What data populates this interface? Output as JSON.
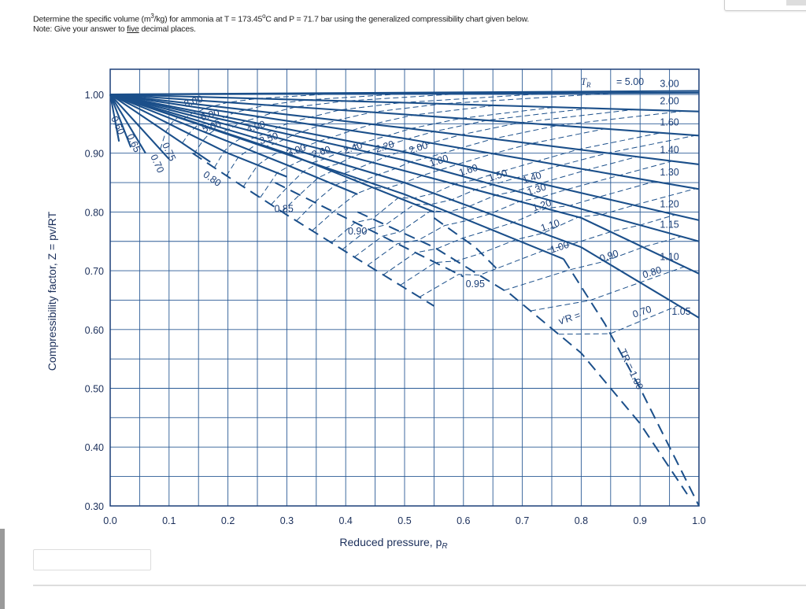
{
  "question": {
    "line1_a": "Determine the specific volume (m",
    "line1_sup": "3",
    "line1_b": "/kg) for ammonia at T = 173.45",
    "line1_deg": "o",
    "line1_c": "C and P = 71.7 bar using the generalized compressibility chart given below.",
    "line2_a": "Note: Give your answer to ",
    "line2_u": "five",
    "line2_b": " decimal places."
  },
  "answer_input": {
    "value": "",
    "placeholder": ""
  },
  "chart_data": {
    "type": "line",
    "title": "",
    "xlabel": "Reduced pressure, p",
    "xlabel_sub": "R",
    "ylabel": "Compressibility factor, Z = pv/RT",
    "xlim": [
      0.0,
      1.0
    ],
    "ylim": [
      0.3,
      1.04
    ],
    "grid": true,
    "grid_step": 0.05,
    "x_ticks": [
      "0.0",
      "0.1",
      "0.2",
      "0.3",
      "0.4",
      "0.5",
      "0.6",
      "0.7",
      "0.8",
      "0.9",
      "1.0"
    ],
    "y_ticks": [
      "0.30",
      "0.40",
      "0.50",
      "0.60",
      "0.70",
      "0.80",
      "0.90",
      "1.00"
    ],
    "line_color": "#1b4f8a",
    "tr_header": "T",
    "tr_header_sub": "R",
    "tr_header_value": "= 5.00",
    "isotherms": [
      {
        "label": "5.00",
        "points": [
          [
            0,
            1
          ],
          [
            1,
            1.006
          ]
        ],
        "label_at": null
      },
      {
        "label": "3.00",
        "points": [
          [
            0,
            1
          ],
          [
            1,
            1.003
          ]
        ],
        "label_at": [
          0.95,
          1.013
        ]
      },
      {
        "label": "2.00",
        "points": [
          [
            0,
            1
          ],
          [
            0.5,
            0.986
          ],
          [
            1,
            0.971
          ]
        ],
        "label_at": [
          0.95,
          0.983
        ]
      },
      {
        "label": "1.60",
        "points": [
          [
            0,
            1
          ],
          [
            0.5,
            0.966
          ],
          [
            1,
            0.93
          ]
        ],
        "label_at": [
          0.95,
          0.947
        ]
      },
      {
        "label": "1.40",
        "points": [
          [
            0,
            1
          ],
          [
            0.5,
            0.943
          ],
          [
            1,
            0.881
          ]
        ],
        "label_at": [
          0.95,
          0.9
        ]
      },
      {
        "label": "1.30",
        "points": [
          [
            0,
            1
          ],
          [
            0.5,
            0.925
          ],
          [
            1,
            0.839
          ]
        ],
        "label_at": [
          0.95,
          0.862
        ]
      },
      {
        "label": "1.20",
        "points": [
          [
            0,
            1
          ],
          [
            0.5,
            0.902
          ],
          [
            1,
            0.786
          ]
        ],
        "label_at": [
          0.95,
          0.808
        ]
      },
      {
        "label": "1.15",
        "points": [
          [
            0,
            1
          ],
          [
            0.5,
            0.888
          ],
          [
            1,
            0.75
          ]
        ],
        "label_at": [
          0.95,
          0.773
        ]
      },
      {
        "label": "1.10",
        "points": [
          [
            0,
            1
          ],
          [
            0.5,
            0.87
          ],
          [
            0.8,
            0.79
          ],
          [
            1,
            0.695
          ]
        ],
        "label_at": [
          0.95,
          0.718
        ]
      },
      {
        "label": "1.05",
        "points": [
          [
            0,
            1
          ],
          [
            0.5,
            0.85
          ],
          [
            0.8,
            0.74
          ],
          [
            1,
            0.62
          ]
        ],
        "label_at": [
          0.97,
          0.625
        ]
      },
      {
        "label": "1.00",
        "points": [
          [
            0,
            1
          ],
          [
            0.5,
            0.83
          ],
          [
            0.77,
            0.72
          ]
        ],
        "label_at": null
      },
      {
        "label": "0.95",
        "points": [
          [
            0,
            1
          ],
          [
            0.3,
            0.9
          ],
          [
            0.55,
            0.8
          ]
        ],
        "label_at": null
      },
      {
        "label": "0.90",
        "points": [
          [
            0,
            1
          ],
          [
            0.3,
            0.88
          ],
          [
            0.42,
            0.83
          ]
        ],
        "label_at": null
      },
      {
        "label": "0.85",
        "points": [
          [
            0,
            1
          ],
          [
            0.2,
            0.9
          ],
          [
            0.3,
            0.86
          ]
        ],
        "label_at": null
      },
      {
        "label": "0.80",
        "points": [
          [
            0,
            1
          ],
          [
            0.17,
            0.885
          ]
        ],
        "label_at": null
      },
      {
        "label": "0.75",
        "points": [
          [
            0,
            1
          ],
          [
            0.1,
            0.89
          ]
        ],
        "label_at": [
          0.095,
          0.9
        ]
      },
      {
        "label": "0.70",
        "points": [
          [
            0,
            1
          ],
          [
            0.06,
            0.9
          ]
        ],
        "label_at": [
          0.075,
          0.88
        ]
      },
      {
        "label": "0.65",
        "points": [
          [
            0,
            1
          ],
          [
            0.035,
            0.91
          ]
        ],
        "label_at": [
          0.035,
          0.915
        ]
      },
      {
        "label": "0.60",
        "points": [
          [
            0,
            1
          ],
          [
            0.015,
            0.92
          ]
        ],
        "label_at": [
          0.008,
          0.945
        ]
      }
    ],
    "dashed_isotherms": [
      {
        "label": "0.80",
        "points": [
          [
            0.14,
            0.9
          ],
          [
            0.2,
            0.86
          ],
          [
            0.3,
            0.795
          ],
          [
            0.42,
            0.72
          ],
          [
            0.55,
            0.64
          ]
        ],
        "label_at": [
          0.17,
          0.852
        ]
      },
      {
        "label": "0.85",
        "points": [
          [
            0.28,
            0.85
          ],
          [
            0.4,
            0.79
          ],
          [
            0.52,
            0.73
          ],
          [
            0.6,
            0.69
          ]
        ],
        "label_at": [
          0.295,
          0.8
        ]
      },
      {
        "label": "0.90",
        "points": [
          [
            0.42,
            0.8
          ],
          [
            0.55,
            0.74
          ],
          [
            0.68,
            0.66
          ],
          [
            0.8,
            0.56
          ],
          [
            0.9,
            0.44
          ],
          [
            0.98,
            0.32
          ]
        ],
        "label_at": [
          0.42,
          0.762
        ]
      },
      {
        "label": "0.95",
        "points": [
          [
            0.55,
            0.79
          ],
          [
            0.62,
            0.74
          ],
          [
            0.66,
            0.7
          ]
        ],
        "label_at": [
          0.62,
          0.672
        ]
      },
      {
        "label": "1.00",
        "points": [
          [
            0.77,
            0.72
          ],
          [
            0.84,
            0.61
          ],
          [
            0.9,
            0.5
          ],
          [
            0.95,
            0.4
          ],
          [
            1.0,
            0.3
          ]
        ],
        "label_at": null
      }
    ],
    "vr_prefix": "v′R =",
    "tr_curve_label": "TR = 1.00",
    "vr_values": [
      {
        "label": "8.00",
        "value": 8.0,
        "label_at": [
          0.143,
          0.983
        ]
      },
      {
        "label": "6.00",
        "value": 6.0,
        "label_at": [
          0.171,
          0.96
        ]
      },
      {
        "label": "5.00",
        "value": 5.0,
        "label_at": [
          0.174,
          0.94
        ]
      },
      {
        "label": "4.00",
        "value": 4.0,
        "label_at": [
          0.249,
          0.94
        ]
      },
      {
        "label": "3.50",
        "value": 3.5,
        "label_at": [
          0.271,
          0.92
        ]
      },
      {
        "label": "3.00",
        "value": 3.0,
        "label_at": [
          0.318,
          0.9
        ]
      },
      {
        "label": "2.60",
        "value": 2.6,
        "label_at": [
          0.36,
          0.897
        ]
      },
      {
        "label": "2.40",
        "value": 2.4,
        "label_at": [
          0.414,
          0.904
        ]
      },
      {
        "label": "2.20",
        "value": 2.2,
        "label_at": [
          0.468,
          0.906
        ]
      },
      {
        "label": "2.00",
        "value": 2.0,
        "label_at": [
          0.525,
          0.904
        ]
      },
      {
        "label": "1.80",
        "value": 1.8,
        "label_at": [
          0.56,
          0.882
        ]
      },
      {
        "label": "1.60",
        "value": 1.6,
        "label_at": [
          0.61,
          0.866
        ]
      },
      {
        "label": "1.50",
        "value": 1.5,
        "label_at": [
          0.66,
          0.857
        ]
      },
      {
        "label": "1.40",
        "value": 1.4,
        "label_at": [
          0.718,
          0.853
        ]
      },
      {
        "label": "1.30",
        "value": 1.3,
        "label_at": [
          0.726,
          0.833
        ]
      },
      {
        "label": "1.20",
        "value": 1.2,
        "label_at": [
          0.735,
          0.806
        ]
      },
      {
        "label": "1.10",
        "value": 1.1,
        "label_at": [
          0.749,
          0.772
        ]
      },
      {
        "label": "1.00",
        "value": 1.0,
        "label_at": [
          0.765,
          0.735
        ]
      },
      {
        "label": "0.90",
        "value": 0.9,
        "label_at": [
          0.849,
          0.72
        ]
      },
      {
        "label": "0.80",
        "value": 0.8,
        "label_at": [
          0.922,
          0.692
        ]
      },
      {
        "label": "0.70",
        "value": 0.7,
        "label_at": [
          0.905,
          0.625
        ]
      }
    ]
  }
}
